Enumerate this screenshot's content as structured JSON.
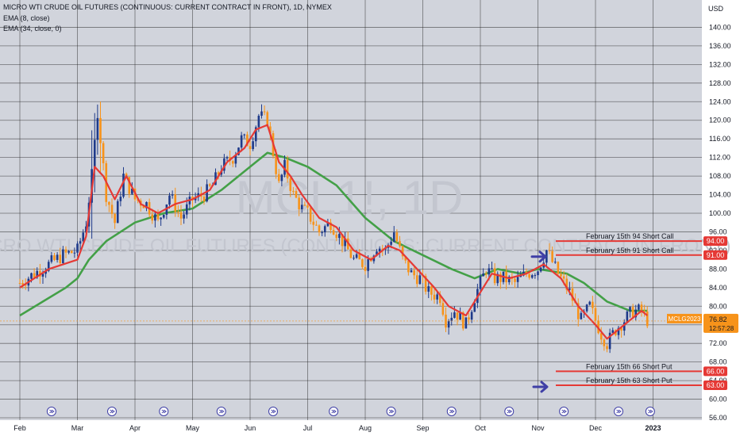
{
  "header": {
    "title": "MICRO WTI CRUDE OIL FUTURES (CONTINUOUS: CURRENT CONTRACT IN FRONT), 1D, NYMEX",
    "indicator_1": "EMA (8, close)",
    "indicator_2": "EMA (34, close, 0)"
  },
  "watermark": {
    "symbol": "MCL1!, 1D",
    "name": "MICRO WTI CRUDE OIL FUTURES (CONTINUOUS: CURRENT CONTRACT IN FRONT)"
  },
  "colors": {
    "background": "#d1d4dc",
    "up": "#1e3a8a",
    "down": "#f7931a",
    "ema8": "#e53935",
    "ema34": "#43a047",
    "level": "#e53935",
    "arrow": "#3f3fa6",
    "price_tag": "#f7931a"
  },
  "price_tag": {
    "symbol": "MCLG2023",
    "price": "76.82",
    "countdown": "12:57:28"
  },
  "chart_data": {
    "type": "candlestick",
    "title": "MICRO WTI CRUDE OIL FUTURES (CONTINUOUS: CURRENT CONTRACT IN FRONT), 1D, NYMEX",
    "currency_label": "USD",
    "x_ticks": [
      "Feb",
      "Mar",
      "Apr",
      "May",
      "Jun",
      "Jul",
      "Aug",
      "Sep",
      "Oct",
      "Nov",
      "Dec",
      "2023"
    ],
    "ylim": [
      56,
      144
    ],
    "y_ticks": [
      56.0,
      60.0,
      64.0,
      68.0,
      72.0,
      76.0,
      80.0,
      84.0,
      88.0,
      92.0,
      96.0,
      100.0,
      104.0,
      108.0,
      112.0,
      116.0,
      120.0,
      124.0,
      128.0,
      132.0,
      136.0,
      140.0
    ],
    "close_series": [
      {
        "t": 0.0,
        "v": 85
      },
      {
        "t": 0.25,
        "v": 87
      },
      {
        "t": 0.5,
        "v": 89
      },
      {
        "t": 0.75,
        "v": 91
      },
      {
        "t": 1.0,
        "v": 92
      },
      {
        "t": 1.15,
        "v": 98
      },
      {
        "t": 1.25,
        "v": 108
      },
      {
        "t": 1.35,
        "v": 122
      },
      {
        "t": 1.5,
        "v": 104
      },
      {
        "t": 1.65,
        "v": 98
      },
      {
        "t": 1.8,
        "v": 108
      },
      {
        "t": 2.0,
        "v": 103
      },
      {
        "t": 2.2,
        "v": 102
      },
      {
        "t": 2.4,
        "v": 98
      },
      {
        "t": 2.6,
        "v": 104
      },
      {
        "t": 2.8,
        "v": 99
      },
      {
        "t": 3.0,
        "v": 103
      },
      {
        "t": 3.2,
        "v": 104
      },
      {
        "t": 3.35,
        "v": 106
      },
      {
        "t": 3.5,
        "v": 110
      },
      {
        "t": 3.7,
        "v": 112
      },
      {
        "t": 3.85,
        "v": 116
      },
      {
        "t": 4.0,
        "v": 115
      },
      {
        "t": 4.15,
        "v": 121
      },
      {
        "t": 4.3,
        "v": 120
      },
      {
        "t": 4.5,
        "v": 106
      },
      {
        "t": 4.6,
        "v": 110
      },
      {
        "t": 4.75,
        "v": 104
      },
      {
        "t": 4.9,
        "v": 101
      },
      {
        "t": 5.0,
        "v": 100
      },
      {
        "t": 5.2,
        "v": 96
      },
      {
        "t": 5.4,
        "v": 98
      },
      {
        "t": 5.6,
        "v": 94
      },
      {
        "t": 5.8,
        "v": 90
      },
      {
        "t": 6.0,
        "v": 89
      },
      {
        "t": 6.2,
        "v": 93
      },
      {
        "t": 6.35,
        "v": 92
      },
      {
        "t": 6.5,
        "v": 96
      },
      {
        "t": 6.65,
        "v": 90
      },
      {
        "t": 6.8,
        "v": 87
      },
      {
        "t": 6.95,
        "v": 86
      },
      {
        "t": 7.1,
        "v": 83
      },
      {
        "t": 7.3,
        "v": 82
      },
      {
        "t": 7.4,
        "v": 77
      },
      {
        "t": 7.55,
        "v": 79
      },
      {
        "t": 7.75,
        "v": 76
      },
      {
        "t": 7.9,
        "v": 82
      },
      {
        "t": 8.1,
        "v": 88
      },
      {
        "t": 8.25,
        "v": 86
      },
      {
        "t": 8.4,
        "v": 86
      },
      {
        "t": 8.6,
        "v": 85
      },
      {
        "t": 8.8,
        "v": 87
      },
      {
        "t": 9.0,
        "v": 88
      },
      {
        "t": 9.15,
        "v": 92
      },
      {
        "t": 9.35,
        "v": 87
      },
      {
        "t": 9.55,
        "v": 83
      },
      {
        "t": 9.75,
        "v": 77
      },
      {
        "t": 9.9,
        "v": 80
      },
      {
        "t": 10.1,
        "v": 74
      },
      {
        "t": 10.2,
        "v": 72
      },
      {
        "t": 10.35,
        "v": 75
      },
      {
        "t": 10.5,
        "v": 77
      },
      {
        "t": 10.65,
        "v": 79
      },
      {
        "t": 10.8,
        "v": 79
      },
      {
        "t": 10.9,
        "v": 77
      }
    ],
    "series": [
      {
        "name": "EMA (8, close)",
        "type": "line",
        "values": [
          {
            "t": 0.0,
            "v": 84
          },
          {
            "t": 0.5,
            "v": 88
          },
          {
            "t": 1.0,
            "v": 90
          },
          {
            "t": 1.15,
            "v": 95
          },
          {
            "t": 1.3,
            "v": 110
          },
          {
            "t": 1.45,
            "v": 108
          },
          {
            "t": 1.65,
            "v": 103
          },
          {
            "t": 1.85,
            "v": 108
          },
          {
            "t": 2.1,
            "v": 102
          },
          {
            "t": 2.4,
            "v": 100
          },
          {
            "t": 2.7,
            "v": 102
          },
          {
            "t": 3.0,
            "v": 103
          },
          {
            "t": 3.3,
            "v": 105
          },
          {
            "t": 3.6,
            "v": 111
          },
          {
            "t": 3.9,
            "v": 114
          },
          {
            "t": 4.1,
            "v": 118
          },
          {
            "t": 4.3,
            "v": 119
          },
          {
            "t": 4.5,
            "v": 111
          },
          {
            "t": 4.7,
            "v": 108
          },
          {
            "t": 4.9,
            "v": 104
          },
          {
            "t": 5.2,
            "v": 99
          },
          {
            "t": 5.5,
            "v": 97
          },
          {
            "t": 5.8,
            "v": 92
          },
          {
            "t": 6.1,
            "v": 90
          },
          {
            "t": 6.4,
            "v": 93
          },
          {
            "t": 6.6,
            "v": 92
          },
          {
            "t": 6.9,
            "v": 88
          },
          {
            "t": 7.2,
            "v": 84
          },
          {
            "t": 7.45,
            "v": 80
          },
          {
            "t": 7.75,
            "v": 78
          },
          {
            "t": 8.0,
            "v": 83
          },
          {
            "t": 8.2,
            "v": 87
          },
          {
            "t": 8.5,
            "v": 86
          },
          {
            "t": 8.8,
            "v": 87
          },
          {
            "t": 9.1,
            "v": 89
          },
          {
            "t": 9.4,
            "v": 86
          },
          {
            "t": 9.7,
            "v": 80
          },
          {
            "t": 10.0,
            "v": 76
          },
          {
            "t": 10.2,
            "v": 73
          },
          {
            "t": 10.4,
            "v": 75
          },
          {
            "t": 10.6,
            "v": 77
          },
          {
            "t": 10.8,
            "v": 79
          },
          {
            "t": 10.9,
            "v": 78
          }
        ]
      },
      {
        "name": "EMA (34, close, 0)",
        "type": "line",
        "values": [
          {
            "t": 0.0,
            "v": 78
          },
          {
            "t": 0.4,
            "v": 81
          },
          {
            "t": 0.8,
            "v": 84
          },
          {
            "t": 1.0,
            "v": 86
          },
          {
            "t": 1.2,
            "v": 90
          },
          {
            "t": 1.5,
            "v": 94
          },
          {
            "t": 2.0,
            "v": 98
          },
          {
            "t": 2.5,
            "v": 100
          },
          {
            "t": 3.0,
            "v": 101
          },
          {
            "t": 3.5,
            "v": 105
          },
          {
            "t": 4.0,
            "v": 110
          },
          {
            "t": 4.3,
            "v": 113
          },
          {
            "t": 4.6,
            "v": 112
          },
          {
            "t": 5.0,
            "v": 110
          },
          {
            "t": 5.5,
            "v": 106
          },
          {
            "t": 6.0,
            "v": 99
          },
          {
            "t": 6.5,
            "v": 94
          },
          {
            "t": 7.0,
            "v": 91
          },
          {
            "t": 7.5,
            "v": 88
          },
          {
            "t": 7.9,
            "v": 86
          },
          {
            "t": 8.3,
            "v": 88
          },
          {
            "t": 8.7,
            "v": 87
          },
          {
            "t": 9.0,
            "v": 88
          },
          {
            "t": 9.5,
            "v": 87
          },
          {
            "t": 9.8,
            "v": 85
          },
          {
            "t": 10.2,
            "v": 81
          },
          {
            "t": 10.6,
            "v": 79
          },
          {
            "t": 10.9,
            "v": 79
          }
        ]
      }
    ],
    "levels": [
      {
        "label": "February 15th 94 Short Call",
        "price": 94.0,
        "tag": "94.00"
      },
      {
        "label": "February 15th 91 Short Call",
        "price": 91.0,
        "tag": "91.00"
      },
      {
        "label": "February 15th 66 Short Put",
        "price": 66.0,
        "tag": "66.00"
      },
      {
        "label": "February 15th 63 Short Put",
        "price": 63.0,
        "tag": "63.00"
      }
    ],
    "last_price": 76.82,
    "legend_position": "top-left"
  }
}
